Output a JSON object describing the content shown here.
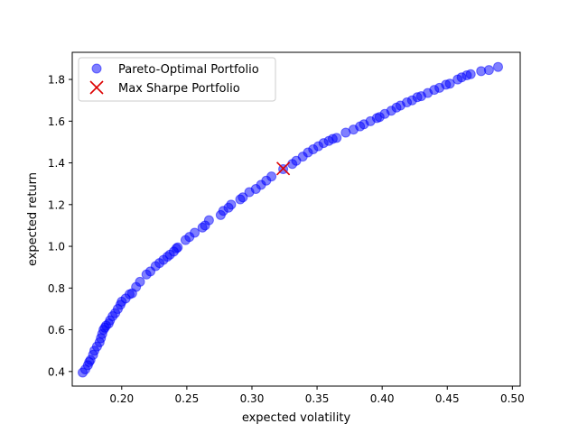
{
  "chart_data": {
    "type": "scatter",
    "title": "",
    "xlabel": "expected volatility",
    "ylabel": "expected return",
    "xlim": [
      0.162,
      0.506
    ],
    "ylim": [
      0.33,
      1.93
    ],
    "xticks": [
      0.2,
      0.25,
      0.3,
      0.35,
      0.4,
      0.45,
      0.5
    ],
    "xtick_labels": [
      "0.20",
      "0.25",
      "0.30",
      "0.35",
      "0.40",
      "0.45",
      "0.50"
    ],
    "yticks": [
      0.4,
      0.6,
      0.8,
      1.0,
      1.2,
      1.4,
      1.6,
      1.8
    ],
    "ytick_labels": [
      "0.4",
      "0.6",
      "0.8",
      "1.0",
      "1.2",
      "1.4",
      "1.6",
      "1.8"
    ],
    "grid": false,
    "legend": {
      "position": "top-left"
    },
    "series": [
      {
        "name": "Pareto-Optimal Portfolio",
        "marker": "circle",
        "color": "#0000ff",
        "alpha": 0.5,
        "points": [
          [
            0.17,
            0.395
          ],
          [
            0.172,
            0.41
          ],
          [
            0.174,
            0.43
          ],
          [
            0.175,
            0.445
          ],
          [
            0.176,
            0.455
          ],
          [
            0.178,
            0.48
          ],
          [
            0.179,
            0.5
          ],
          [
            0.181,
            0.52
          ],
          [
            0.183,
            0.54
          ],
          [
            0.184,
            0.56
          ],
          [
            0.185,
            0.58
          ],
          [
            0.186,
            0.6
          ],
          [
            0.187,
            0.61
          ],
          [
            0.188,
            0.62
          ],
          [
            0.19,
            0.63
          ],
          [
            0.191,
            0.645
          ],
          [
            0.193,
            0.665
          ],
          [
            0.195,
            0.68
          ],
          [
            0.197,
            0.7
          ],
          [
            0.199,
            0.72
          ],
          [
            0.2,
            0.735
          ],
          [
            0.203,
            0.75
          ],
          [
            0.206,
            0.77
          ],
          [
            0.208,
            0.775
          ],
          [
            0.211,
            0.805
          ],
          [
            0.214,
            0.83
          ],
          [
            0.219,
            0.865
          ],
          [
            0.222,
            0.88
          ],
          [
            0.226,
            0.905
          ],
          [
            0.229,
            0.92
          ],
          [
            0.232,
            0.935
          ],
          [
            0.235,
            0.95
          ],
          [
            0.237,
            0.96
          ],
          [
            0.24,
            0.975
          ],
          [
            0.242,
            0.99
          ],
          [
            0.243,
            0.995
          ],
          [
            0.249,
            1.03
          ],
          [
            0.252,
            1.045
          ],
          [
            0.256,
            1.065
          ],
          [
            0.262,
            1.09
          ],
          [
            0.264,
            1.1
          ],
          [
            0.267,
            1.125
          ],
          [
            0.276,
            1.15
          ],
          [
            0.278,
            1.17
          ],
          [
            0.282,
            1.185
          ],
          [
            0.284,
            1.2
          ],
          [
            0.291,
            1.225
          ],
          [
            0.293,
            1.235
          ],
          [
            0.298,
            1.26
          ],
          [
            0.303,
            1.275
          ],
          [
            0.307,
            1.295
          ],
          [
            0.311,
            1.315
          ],
          [
            0.315,
            1.335
          ],
          [
            0.324,
            1.37
          ],
          [
            0.331,
            1.395
          ],
          [
            0.334,
            1.41
          ],
          [
            0.339,
            1.43
          ],
          [
            0.343,
            1.45
          ],
          [
            0.347,
            1.465
          ],
          [
            0.351,
            1.48
          ],
          [
            0.355,
            1.495
          ],
          [
            0.359,
            1.505
          ],
          [
            0.362,
            1.515
          ],
          [
            0.365,
            1.52
          ],
          [
            0.372,
            1.545
          ],
          [
            0.378,
            1.56
          ],
          [
            0.383,
            1.575
          ],
          [
            0.386,
            1.585
          ],
          [
            0.391,
            1.6
          ],
          [
            0.396,
            1.615
          ],
          [
            0.398,
            1.62
          ],
          [
            0.402,
            1.635
          ],
          [
            0.407,
            1.65
          ],
          [
            0.411,
            1.665
          ],
          [
            0.414,
            1.675
          ],
          [
            0.419,
            1.69
          ],
          [
            0.423,
            1.7
          ],
          [
            0.427,
            1.715
          ],
          [
            0.43,
            1.72
          ],
          [
            0.435,
            1.735
          ],
          [
            0.44,
            1.75
          ],
          [
            0.444,
            1.76
          ],
          [
            0.449,
            1.775
          ],
          [
            0.452,
            1.78
          ],
          [
            0.458,
            1.8
          ],
          [
            0.461,
            1.81
          ],
          [
            0.465,
            1.82
          ],
          [
            0.468,
            1.825
          ],
          [
            0.476,
            1.84
          ],
          [
            0.482,
            1.845
          ],
          [
            0.489,
            1.86
          ]
        ]
      },
      {
        "name": "Max Sharpe Portfolio",
        "marker": "x",
        "color": "#dd0000",
        "points": [
          [
            0.324,
            1.373
          ]
        ]
      }
    ]
  }
}
